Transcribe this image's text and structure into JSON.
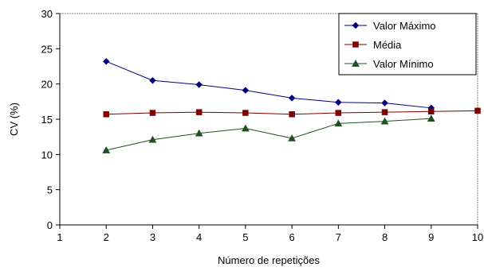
{
  "chart_data": {
    "type": "line",
    "title": "",
    "xlabel": "Número de repetições",
    "ylabel": "CV (%)",
    "xlim": [
      1,
      10
    ],
    "ylim": [
      0,
      30
    ],
    "xticks": [
      "1",
      "2",
      "3",
      "4",
      "5",
      "6",
      "7",
      "8",
      "9",
      "10"
    ],
    "yticks": [
      "0",
      "5",
      "10",
      "15",
      "20",
      "25",
      "30"
    ],
    "grid": false,
    "legend_position": "top-right",
    "series": [
      {
        "name": "Valor Máximo",
        "color": "#00007F",
        "marker": "diamond",
        "x": [
          2,
          3,
          4,
          5,
          6,
          7,
          8,
          9
        ],
        "y": [
          23.2,
          20.5,
          19.9,
          19.1,
          18.0,
          17.4,
          17.3,
          16.6
        ]
      },
      {
        "name": "Média",
        "color": "#7F0000",
        "marker": "square",
        "x": [
          2,
          3,
          4,
          5,
          6,
          7,
          8,
          9,
          10
        ],
        "y": [
          15.7,
          15.9,
          16.0,
          15.9,
          15.7,
          15.9,
          16.0,
          16.1,
          16.2
        ]
      },
      {
        "name": "Valor Mínimo",
        "color": "#1F4F1F",
        "marker": "triangle",
        "x": [
          2,
          3,
          4,
          5,
          6,
          7,
          8,
          9
        ],
        "y": [
          10.6,
          12.1,
          13.0,
          13.7,
          12.3,
          14.4,
          14.7,
          15.1
        ]
      }
    ]
  }
}
